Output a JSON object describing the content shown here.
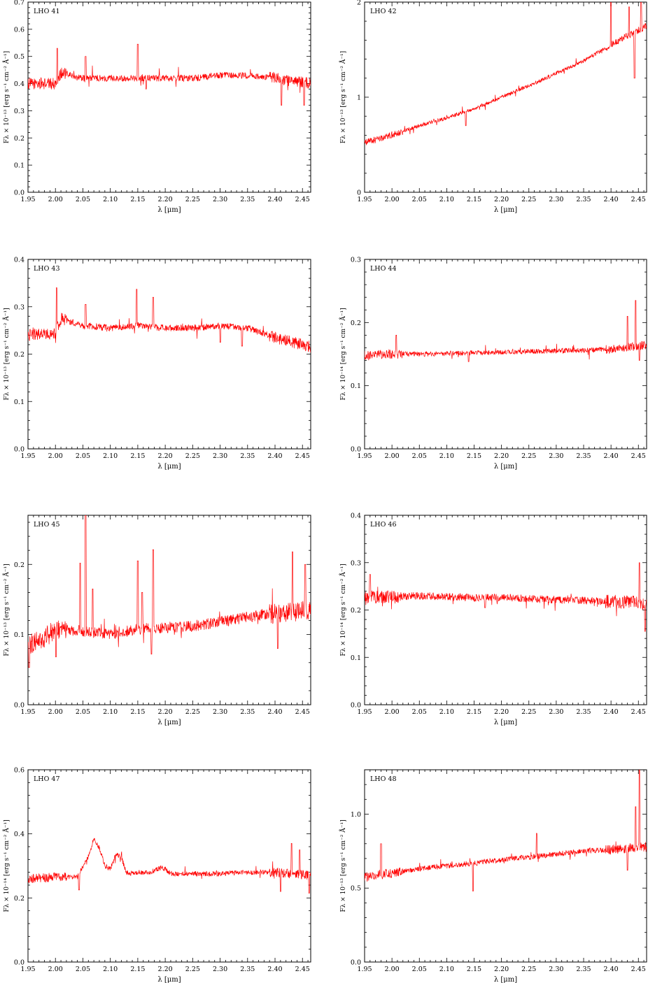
{
  "figure": {
    "xlabel": "λ [μm]",
    "x_ticks": [
      "1.95",
      "2.00",
      "2.05",
      "2.10",
      "2.15",
      "2.20",
      "2.25",
      "2.30",
      "2.35",
      "2.40",
      "2.45"
    ],
    "line_color": "#ff0000",
    "frame_color": "#000000"
  },
  "chart_data": [
    {
      "type": "line",
      "label": "LHO 41",
      "ylabel": "Fλ × 10⁻¹³ [erg s⁻¹ cm⁻² Å⁻¹]",
      "xlim": [
        1.95,
        2.465
      ],
      "ylim": [
        0.0,
        0.7
      ],
      "y_ticks": [
        "0.0",
        "0.1",
        "0.2",
        "0.3",
        "0.4",
        "0.5",
        "0.6",
        "0.7"
      ],
      "spectrum": {
        "x": [
          1.95,
          2.0,
          2.01,
          2.05,
          2.1,
          2.15,
          2.2,
          2.25,
          2.3,
          2.35,
          2.4,
          2.465
        ],
        "y": [
          0.4,
          0.4,
          0.44,
          0.42,
          0.42,
          0.42,
          0.42,
          0.42,
          0.43,
          0.43,
          0.42,
          0.4
        ]
      },
      "noise": 0.012,
      "spikes": [
        [
          2.003,
          0.53
        ],
        [
          2.055,
          0.5
        ],
        [
          2.15,
          0.545
        ],
        [
          2.165,
          0.38
        ],
        [
          2.412,
          0.32
        ],
        [
          2.453,
          0.32
        ]
      ]
    },
    {
      "type": "line",
      "label": "LHO 42",
      "ylabel": "Fλ × 10⁻¹³ [erg s⁻¹ cm⁻² Å⁻¹]",
      "xlim": [
        1.95,
        2.465
      ],
      "ylim": [
        0.0,
        2.0
      ],
      "y_ticks": [
        "0",
        "1",
        "2"
      ],
      "spectrum": {
        "x": [
          1.95,
          2.0,
          2.05,
          2.1,
          2.15,
          2.2,
          2.25,
          2.3,
          2.35,
          2.4,
          2.465
        ],
        "y": [
          0.52,
          0.6,
          0.7,
          0.78,
          0.88,
          1.0,
          1.12,
          1.25,
          1.38,
          1.55,
          1.75
        ]
      },
      "noise": 0.02,
      "spikes": [
        [
          2.135,
          0.7
        ],
        [
          2.4,
          2.0
        ],
        [
          2.433,
          1.95
        ],
        [
          2.455,
          2.0
        ],
        [
          2.443,
          1.2
        ]
      ]
    },
    {
      "type": "line",
      "label": "LHO 43",
      "ylabel": "Fλ × 10⁻¹³ [erg s⁻¹ cm⁻² Å⁻¹]",
      "xlim": [
        1.95,
        2.465
      ],
      "ylim": [
        0.0,
        0.4
      ],
      "y_ticks": [
        "0.0",
        "0.1",
        "0.2",
        "0.3",
        "0.4"
      ],
      "spectrum": {
        "x": [
          1.95,
          2.0,
          2.01,
          2.05,
          2.1,
          2.15,
          2.2,
          2.25,
          2.3,
          2.35,
          2.4,
          2.465
        ],
        "y": [
          0.24,
          0.245,
          0.275,
          0.26,
          0.255,
          0.26,
          0.255,
          0.255,
          0.26,
          0.255,
          0.235,
          0.215
        ]
      },
      "noise": 0.007,
      "spikes": [
        [
          2.002,
          0.34
        ],
        [
          2.055,
          0.305
        ],
        [
          2.148,
          0.337
        ],
        [
          2.178,
          0.32
        ],
        [
          2.3,
          0.225
        ],
        [
          2.34,
          0.217
        ]
      ]
    },
    {
      "type": "line",
      "label": "LHO 44",
      "ylabel": "Fλ × 10⁻¹⁴ [erg s⁻¹ cm⁻² Å⁻¹]",
      "xlim": [
        1.95,
        2.465
      ],
      "ylim": [
        0.0,
        0.3
      ],
      "y_ticks": [
        "0.0",
        "0.1",
        "0.2",
        "0.3"
      ],
      "spectrum": {
        "x": [
          1.95,
          2.0,
          2.05,
          2.1,
          2.15,
          2.2,
          2.25,
          2.3,
          2.35,
          2.4,
          2.465
        ],
        "y": [
          0.148,
          0.15,
          0.15,
          0.151,
          0.152,
          0.153,
          0.154,
          0.155,
          0.156,
          0.158,
          0.165
        ]
      },
      "noise": 0.004,
      "spikes": [
        [
          2.008,
          0.18
        ],
        [
          2.445,
          0.235
        ],
        [
          2.43,
          0.21
        ],
        [
          2.452,
          0.14
        ],
        [
          2.14,
          0.138
        ]
      ]
    },
    {
      "type": "line",
      "label": "LHO 45",
      "ylabel": "Fλ × 10⁻¹³ [erg s⁻¹ cm⁻² Å⁻¹]",
      "xlim": [
        1.95,
        2.465
      ],
      "ylim": [
        0.0,
        0.27
      ],
      "y_ticks": [
        "0.0",
        "0.1",
        "0.2"
      ],
      "spectrum": {
        "x": [
          1.95,
          1.98,
          2.0,
          2.05,
          2.1,
          2.15,
          2.2,
          2.25,
          2.3,
          2.35,
          2.4,
          2.465
        ],
        "y": [
          0.085,
          0.095,
          0.108,
          0.105,
          0.1,
          0.108,
          0.11,
          0.112,
          0.118,
          0.125,
          0.13,
          0.135
        ]
      },
      "noise": 0.008,
      "spikes": [
        [
          2.001,
          0.258
        ],
        [
          2.055,
          0.27
        ],
        [
          2.045,
          0.202
        ],
        [
          2.068,
          0.165
        ],
        [
          2.15,
          0.205
        ],
        [
          2.158,
          0.16
        ],
        [
          2.178,
          0.221
        ],
        [
          2.175,
          0.072
        ],
        [
          2.432,
          0.218
        ],
        [
          2.405,
          0.08
        ],
        [
          2.455,
          0.2
        ],
        [
          2.001,
          0.068
        ],
        [
          1.952,
          0.053
        ]
      ]
    },
    {
      "type": "line",
      "label": "LHO 46",
      "ylabel": "Fλ × 10⁻¹⁴ [erg s⁻¹ cm⁻² Å⁻¹]",
      "xlim": [
        1.95,
        2.465
      ],
      "ylim": [
        0.0,
        0.4
      ],
      "y_ticks": [
        "0.0",
        "0.1",
        "0.2",
        "0.3",
        "0.4"
      ],
      "spectrum": {
        "x": [
          1.95,
          2.0,
          2.05,
          2.1,
          2.15,
          2.2,
          2.25,
          2.3,
          2.35,
          2.4,
          2.465
        ],
        "y": [
          0.225,
          0.228,
          0.23,
          0.228,
          0.226,
          0.226,
          0.224,
          0.222,
          0.22,
          0.218,
          0.215
        ]
      },
      "noise": 0.008,
      "spikes": [
        [
          2.452,
          0.3
        ],
        [
          2.462,
          0.155
        ],
        [
          1.96,
          0.275
        ],
        [
          2.17,
          0.205
        ]
      ]
    },
    {
      "type": "line",
      "label": "LHO 47",
      "ylabel": "Fλ × 10⁻¹⁴ [erg s⁻¹ cm⁻² Å⁻¹]",
      "xlim": [
        1.95,
        2.465
      ],
      "ylim": [
        0.0,
        0.6
      ],
      "y_ticks": [
        "0.0",
        "0.2",
        "0.4",
        "0.6"
      ],
      "spectrum": {
        "x": [
          1.95,
          2.0,
          2.04,
          2.05,
          2.06,
          2.07,
          2.08,
          2.09,
          2.1,
          2.11,
          2.12,
          2.125,
          2.13,
          2.14,
          2.15,
          2.17,
          2.18,
          2.19,
          2.2,
          2.21,
          2.25,
          2.3,
          2.35,
          2.4,
          2.465
        ],
        "y": [
          0.26,
          0.265,
          0.265,
          0.3,
          0.33,
          0.385,
          0.355,
          0.3,
          0.29,
          0.335,
          0.33,
          0.3,
          0.28,
          0.275,
          0.28,
          0.28,
          0.285,
          0.295,
          0.29,
          0.275,
          0.275,
          0.275,
          0.28,
          0.28,
          0.27
        ]
      },
      "noise": 0.008,
      "spikes": [
        [
          2.043,
          0.225
        ],
        [
          2.43,
          0.37
        ],
        [
          2.445,
          0.35
        ],
        [
          2.462,
          0.215
        ],
        [
          2.41,
          0.22
        ]
      ]
    },
    {
      "type": "line",
      "label": "LHO 48",
      "ylabel": "Fλ × 10⁻¹³ [erg s⁻¹ cm⁻² Å⁻¹]",
      "xlim": [
        1.95,
        2.465
      ],
      "ylim": [
        0.0,
        1.3
      ],
      "y_ticks": [
        "0.0",
        "0.5",
        "1.0"
      ],
      "spectrum": {
        "x": [
          1.95,
          2.0,
          2.05,
          2.1,
          2.15,
          2.2,
          2.25,
          2.3,
          2.35,
          2.4,
          2.465
        ],
        "y": [
          0.58,
          0.6,
          0.63,
          0.65,
          0.67,
          0.69,
          0.71,
          0.73,
          0.75,
          0.76,
          0.78
        ]
      },
      "noise": 0.018,
      "spikes": [
        [
          2.148,
          0.48
        ],
        [
          2.264,
          0.87
        ],
        [
          2.452,
          1.3
        ],
        [
          2.445,
          1.05
        ],
        [
          1.98,
          0.8
        ],
        [
          2.43,
          0.62
        ]
      ]
    }
  ]
}
